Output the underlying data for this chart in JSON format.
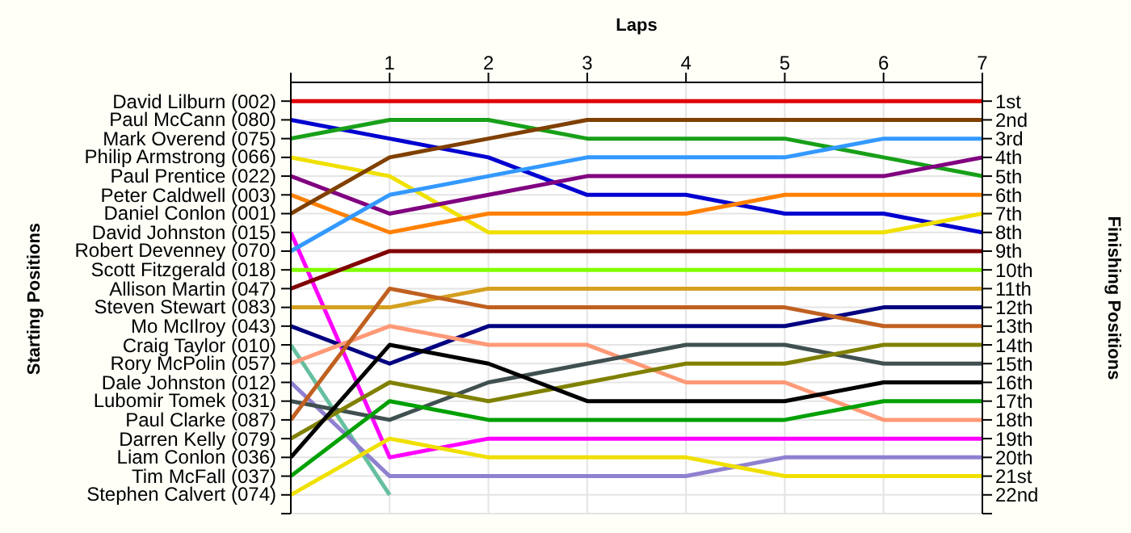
{
  "chart_data": {
    "type": "line",
    "xlabel": "Laps",
    "y2label": "Finishing Positions",
    "annotations": [
      "Starting Positions",
      "David Lilburn (002)",
      "Paul McCann (080)",
      "Mark Overend (075)",
      "Philip Armstrong (066)",
      "Paul Prentice (022)",
      "Peter Caldwell (003)",
      "Daniel Conlon (001)",
      "David Johnston (015)",
      "Robert Devenney (070)",
      "Scott Fitzgerald (018)",
      "Allison Martin (047)",
      "Steven Stewart (083)",
      "Mo McIlroy (043)",
      "Craig Taylor (010)",
      "Rory McPolin (057)",
      "Dale Johnston (012)",
      "Lubomir Tomek (031)",
      "Paul Clarke (087)",
      "Darren Kelly (079)",
      "Liam Conlon (036)",
      "Tim McFall (037)",
      "Stephen Calvert (074)"
    ],
    "x": [
      0,
      1,
      2,
      3,
      4,
      5,
      6,
      7
    ],
    "xlim": [
      0,
      7
    ],
    "xticks": [
      {
        "value": 0,
        "label": null
      },
      1,
      2,
      3,
      4,
      5,
      6,
      7
    ],
    "y2lim": [
      23,
      0
    ],
    "y2ticks": [
      {
        "value": 1,
        "label": "1st"
      },
      {
        "value": 2,
        "label": "2nd"
      },
      {
        "value": 3,
        "label": "3rd"
      },
      {
        "value": 4,
        "label": "4th"
      },
      {
        "value": 5,
        "label": "5th"
      },
      {
        "value": 6,
        "label": "6th"
      },
      {
        "value": 7,
        "label": "7th"
      },
      {
        "value": 8,
        "label": "8th"
      },
      {
        "value": 9,
        "label": "9th"
      },
      {
        "value": 10,
        "label": "10th"
      },
      {
        "value": 11,
        "label": "11th"
      },
      {
        "value": 12,
        "label": "12th"
      },
      {
        "value": 13,
        "label": "13th"
      },
      {
        "value": 14,
        "label": "14th"
      },
      {
        "value": 15,
        "label": "15th"
      },
      {
        "value": 16,
        "label": "16th"
      },
      {
        "value": 17,
        "label": "17th"
      },
      {
        "value": 18,
        "label": "18th"
      },
      {
        "value": 19,
        "label": "19th"
      },
      {
        "value": 20,
        "label": "20th"
      },
      {
        "value": 21,
        "label": "21st"
      },
      {
        "value": 22,
        "label": "22nd"
      },
      {
        "value": 23,
        "label": null
      }
    ],
    "grid": true,
    "marker": "none",
    "line_style": "solid",
    "series": [
      {
        "axis": "y2",
        "color": "#e00000",
        "values": [
          1,
          1,
          1,
          1,
          1,
          1,
          1,
          1
        ]
      },
      {
        "axis": "y2",
        "color": "#0000d0",
        "values": [
          2,
          3,
          4,
          6,
          6,
          7,
          7,
          8
        ]
      },
      {
        "axis": "y2",
        "color": "#18a018",
        "values": [
          3,
          2,
          2,
          3,
          3,
          3,
          4,
          5
        ]
      },
      {
        "axis": "y2",
        "color": "#f0e000",
        "values": [
          4,
          5,
          8,
          8,
          8,
          8,
          8,
          7
        ]
      },
      {
        "axis": "y2",
        "color": "#800080",
        "values": [
          5,
          7,
          6,
          5,
          5,
          5,
          5,
          4
        ]
      },
      {
        "axis": "y2",
        "color": "#ff8000",
        "values": [
          6,
          8,
          7,
          7,
          7,
          6,
          6,
          6
        ]
      },
      {
        "axis": "y2",
        "color": "#804000",
        "values": [
          7,
          4,
          3,
          2,
          2,
          2,
          2,
          2
        ]
      },
      {
        "axis": "y2",
        "color": "#ff00ff",
        "values": [
          8,
          20,
          19,
          19,
          19,
          19,
          19,
          19
        ]
      },
      {
        "axis": "y2",
        "color": "#3399ff",
        "values": [
          9,
          6,
          5,
          4,
          4,
          4,
          3,
          3
        ]
      },
      {
        "axis": "y2",
        "color": "#80ff00",
        "values": [
          10,
          10,
          10,
          10,
          10,
          10,
          10,
          10
        ]
      },
      {
        "axis": "y2",
        "color": "#800000",
        "values": [
          11,
          9,
          9,
          9,
          9,
          9,
          9,
          9
        ]
      },
      {
        "axis": "y2",
        "color": "#d4a020",
        "values": [
          12,
          12,
          11,
          11,
          11,
          11,
          11,
          11
        ]
      },
      {
        "axis": "y2",
        "color": "#000080",
        "values": [
          13,
          15,
          13,
          13,
          13,
          13,
          12,
          12
        ]
      },
      {
        "axis": "y2",
        "color": "#66c0a0",
        "values": [
          14,
          22,
          null,
          null,
          null,
          null,
          null,
          null
        ]
      },
      {
        "axis": "y2",
        "color": "#ff9977",
        "values": [
          15,
          13,
          14,
          14,
          16,
          16,
          18,
          18
        ]
      },
      {
        "axis": "y2",
        "color": "#9080d0",
        "values": [
          16,
          21,
          21,
          21,
          21,
          20,
          20,
          20
        ]
      },
      {
        "axis": "y2",
        "color": "#405050",
        "values": [
          17,
          18,
          16,
          15,
          14,
          14,
          15,
          15
        ]
      },
      {
        "axis": "y2",
        "color": "#c06020",
        "values": [
          18,
          11,
          12,
          12,
          12,
          12,
          13,
          13
        ]
      },
      {
        "axis": "y2",
        "color": "#808000",
        "values": [
          19,
          16,
          17,
          16,
          15,
          15,
          14,
          14
        ]
      },
      {
        "axis": "y2",
        "color": "#000000",
        "values": [
          20,
          14,
          15,
          17,
          17,
          17,
          16,
          16
        ]
      },
      {
        "axis": "y2",
        "color": "#00a000",
        "values": [
          21,
          17,
          18,
          18,
          18,
          18,
          17,
          17
        ]
      },
      {
        "axis": "y2",
        "color": "#f0e000",
        "values": [
          22,
          19,
          20,
          20,
          20,
          21,
          21,
          21
        ]
      }
    ]
  }
}
